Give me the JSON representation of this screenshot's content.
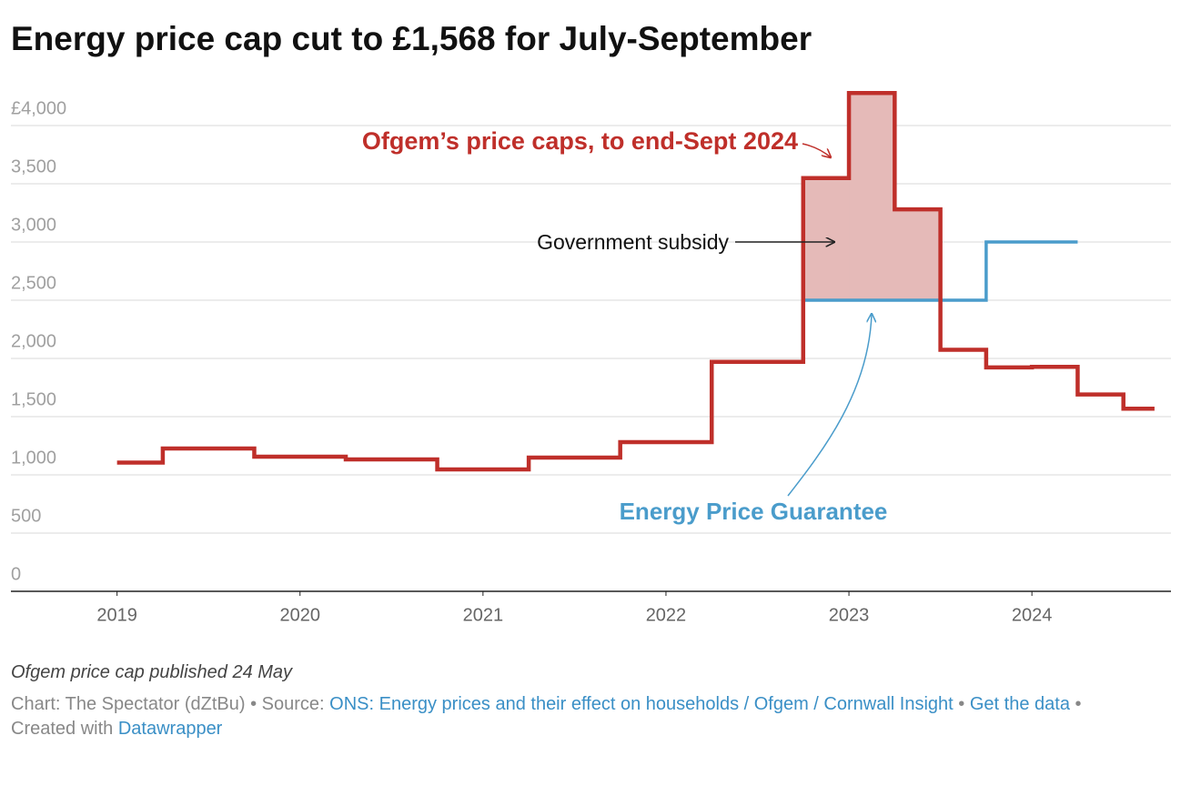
{
  "chart_data": {
    "type": "step-line",
    "title": "Energy price cap cut to £1,568 for July-September",
    "xlim": [
      2018.42,
      2024.76
    ],
    "xticks": [
      2019,
      2020,
      2021,
      2022,
      2023,
      2024
    ],
    "ylim": [
      0,
      4000
    ],
    "yticks": [
      0,
      500,
      {
        "value": 1000,
        "label": "1,000"
      },
      {
        "value": 1500,
        "label": "1,500"
      },
      {
        "value": 2000,
        "label": "2,000"
      },
      {
        "value": 2500,
        "label": "2,500"
      },
      {
        "value": 3000,
        "label": "3,000"
      },
      {
        "value": 3500,
        "label": "3,500"
      },
      {
        "value": 4000,
        "label": "£4,000"
      }
    ],
    "grid": true,
    "series": [
      {
        "name": "Energy Price Guarantee",
        "color": "#4a9ccb",
        "x": [
          2022.75,
          2023.75,
          2024.25
        ],
        "values": [
          2500,
          3000,
          3000
        ]
      },
      {
        "name": "Ofgem’s price caps, to end-Sept 2024",
        "color": "#bf2f2a",
        "x": [
          2019,
          2019.25,
          2019.75,
          2020.25,
          2020.75,
          2021.25,
          2021.75,
          2022.25,
          2022.75,
          2023,
          2023.25,
          2023.5,
          2023.75,
          2024,
          2024.25,
          2024.5,
          2024.67
        ],
        "values": [
          1105,
          1227,
          1156,
          1133,
          1047,
          1148,
          1281,
          1971,
          3549,
          4279,
          3280,
          2074,
          1923,
          1928,
          1690,
          1568,
          1568
        ]
      }
    ],
    "shade_color": "#e5bab8",
    "annotations": [
      "Government subsidy"
    ],
    "note": "Ofgem price cap published 24 May",
    "credit": {
      "byline": "Chart: The Spectator (dZtBu)",
      "separator": "•",
      "source_label": "Source:",
      "source": "ONS: Energy prices and their effect on households / Ofgem / Cornwall Insight",
      "get_data": "Get the data",
      "created_with": "Created with",
      "tool": "Datawrapper"
    }
  }
}
